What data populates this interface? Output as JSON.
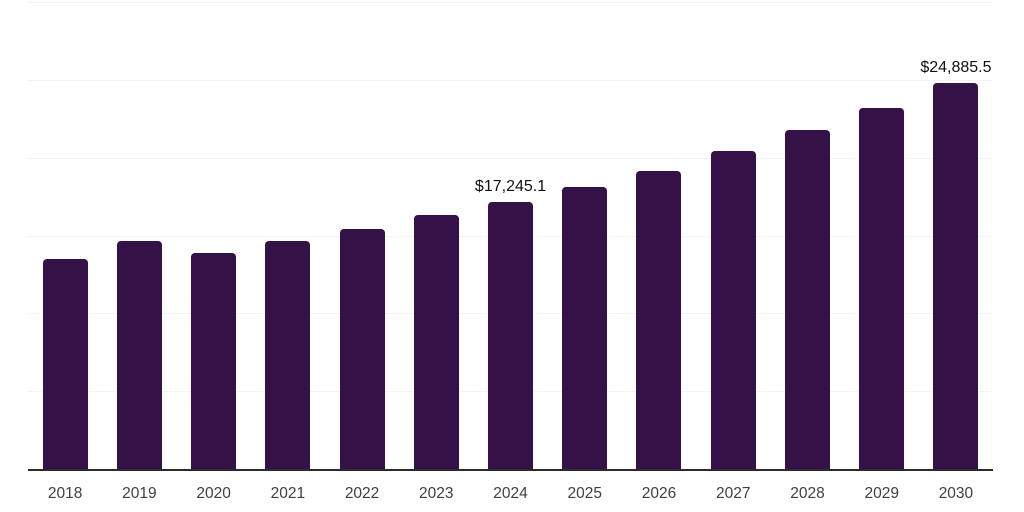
{
  "chart_data": {
    "type": "bar",
    "title": "",
    "xlabel": "",
    "ylabel": "",
    "categories": [
      "2018",
      "2019",
      "2020",
      "2021",
      "2022",
      "2023",
      "2024",
      "2025",
      "2026",
      "2027",
      "2028",
      "2029",
      "2030"
    ],
    "values": [
      13580,
      14680,
      13970,
      14740,
      15510,
      16410,
      17245.1,
      18210,
      19230,
      20520,
      21870,
      23280,
      24885.5
    ],
    "ylim": [
      0,
      30000
    ],
    "grid": true,
    "grid_step": 5000,
    "legend_position": "none",
    "data_labels": [
      {
        "category": "2024",
        "text": "$17,245.1"
      },
      {
        "category": "2030",
        "text": "$24,885.5"
      }
    ]
  },
  "style": {
    "background_color": "#ffffff",
    "bar_color": "#341147",
    "gridline_color": "#f3f3f3",
    "axis_line_color": "#2b2b2b",
    "tick_label_color": "#404040",
    "data_label_color": "#111111"
  }
}
